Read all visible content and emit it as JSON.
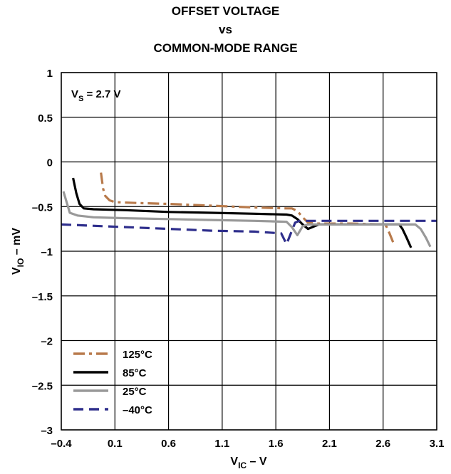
{
  "title_lines": [
    "OFFSET VOLTAGE",
    "vs",
    "COMMON-MODE RANGE"
  ],
  "chart_data": {
    "type": "line",
    "xlabel": {
      "main": "V",
      "sub": "IC",
      "suffix": " – V"
    },
    "ylabel": {
      "main": "V",
      "sub": "IO",
      "suffix": " – mV"
    },
    "xlim": [
      -0.4,
      3.1
    ],
    "ylim": [
      -3,
      1
    ],
    "xticks": [
      "–0.4",
      "0.1",
      "0.6",
      "1.1",
      "1.6",
      "2.1",
      "2.6",
      "3.1"
    ],
    "yticks": [
      "1",
      "0.5",
      "0",
      "–0.5",
      "–1",
      "–1.5",
      "–2",
      "–2.5",
      "–3"
    ],
    "grid": true,
    "annotation": {
      "main": "V",
      "sub": "S",
      "suffix": " = 2.7 V"
    },
    "legend_position": "bottom-left",
    "series": [
      {
        "name": "125°C",
        "color": "#b87a4b",
        "dash": "dashdot",
        "x": [
          -0.03,
          -0.01,
          0.01,
          0.05,
          0.1,
          0.3,
          0.6,
          1.0,
          1.4,
          1.7,
          1.75,
          1.8,
          1.85,
          1.9,
          2.0,
          2.3,
          2.6,
          2.63,
          2.66,
          2.7
        ],
        "y": [
          -0.12,
          -0.3,
          -0.38,
          -0.43,
          -0.45,
          -0.46,
          -0.47,
          -0.49,
          -0.51,
          -0.52,
          -0.52,
          -0.55,
          -0.62,
          -0.68,
          -0.69,
          -0.69,
          -0.7,
          -0.72,
          -0.8,
          -0.92
        ]
      },
      {
        "name": "85°C",
        "color": "#000000",
        "dash": "solid",
        "x": [
          -0.29,
          -0.26,
          -0.23,
          -0.19,
          -0.1,
          0.2,
          0.6,
          1.0,
          1.4,
          1.7,
          1.75,
          1.8,
          1.85,
          1.9,
          2.0,
          2.3,
          2.6,
          2.75,
          2.78,
          2.82,
          2.86
        ],
        "y": [
          -0.18,
          -0.35,
          -0.47,
          -0.52,
          -0.53,
          -0.54,
          -0.56,
          -0.57,
          -0.58,
          -0.59,
          -0.6,
          -0.64,
          -0.7,
          -0.75,
          -0.7,
          -0.7,
          -0.7,
          -0.7,
          -0.75,
          -0.85,
          -0.96
        ]
      },
      {
        "name": "25°C",
        "color": "#999999",
        "dash": "solid",
        "x": [
          -0.38,
          -0.35,
          -0.32,
          -0.25,
          -0.1,
          0.2,
          0.6,
          1.0,
          1.4,
          1.7,
          1.75,
          1.8,
          1.85,
          1.9,
          2.0,
          2.3,
          2.6,
          2.9,
          2.95,
          3.0,
          3.04
        ],
        "y": [
          -0.33,
          -0.45,
          -0.57,
          -0.6,
          -0.62,
          -0.63,
          -0.64,
          -0.65,
          -0.66,
          -0.67,
          -0.73,
          -0.82,
          -0.72,
          -0.7,
          -0.7,
          -0.7,
          -0.7,
          -0.7,
          -0.75,
          -0.85,
          -0.95
        ]
      },
      {
        "name": "–40°C",
        "color": "#2e2e8c",
        "dash": "dash",
        "x": [
          -0.4,
          -0.2,
          0.0,
          0.2,
          0.6,
          1.0,
          1.4,
          1.65,
          1.7,
          1.74,
          1.78,
          1.82,
          2.0,
          2.4,
          2.8,
          3.1
        ],
        "y": [
          -0.7,
          -0.71,
          -0.72,
          -0.73,
          -0.75,
          -0.77,
          -0.78,
          -0.8,
          -0.92,
          -0.8,
          -0.68,
          -0.66,
          -0.66,
          -0.66,
          -0.66,
          -0.66
        ]
      }
    ]
  }
}
